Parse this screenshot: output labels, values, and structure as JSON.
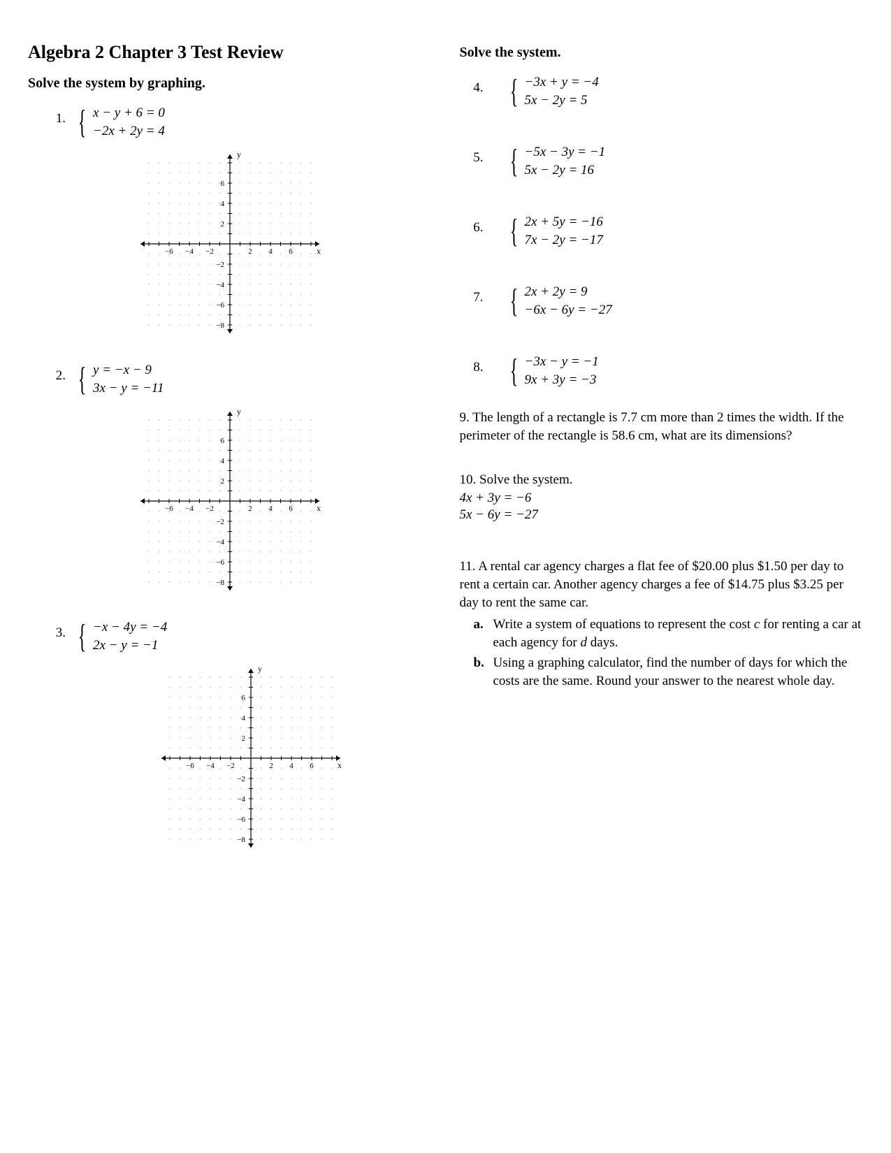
{
  "title": "Algebra 2 Chapter 3 Test Review",
  "left": {
    "heading": "Solve the system by graphing.",
    "problems": [
      {
        "num": "1.",
        "eq1": "x − y + 6 = 0",
        "eq2": "−2x + 2y = 4"
      },
      {
        "num": "2.",
        "eq1": "y = −x − 9",
        "eq2": "3x − y = −11"
      },
      {
        "num": "3.",
        "eq1": "−x − 4y = −4",
        "eq2": "2x − y = −1"
      }
    ]
  },
  "right": {
    "heading": "Solve the system.",
    "problems": [
      {
        "num": "4.",
        "eq1": "−3x + y = −4",
        "eq2": "5x − 2y = 5"
      },
      {
        "num": "5.",
        "eq1": "−5x − 3y = −1",
        "eq2": "5x − 2y = 16"
      },
      {
        "num": "6.",
        "eq1": "2x + 5y = −16",
        "eq2": "7x − 2y = −17"
      },
      {
        "num": "7.",
        "eq1": "2x + 2y = 9",
        "eq2": "−6x − 6y = −27"
      },
      {
        "num": "8.",
        "eq1": "−3x − y = −1",
        "eq2": "9x + 3y = −3"
      }
    ],
    "p9": "9. The length of a rectangle is 7.7 cm more than 2 times the width. If the perimeter of the rectangle is 58.6 cm, what are its dimensions?",
    "p10": {
      "label": "10.      Solve the system.",
      "eq1": "4x + 3y = −6",
      "eq2": "5x − 6y = −27"
    },
    "p11": {
      "intro": "11.  A rental car agency charges a flat fee of $20.00 plus $1.50 per day to rent a certain car. Another agency charges a fee of $14.75 plus $3.25 per day to rent the same car.",
      "a_label": "a.",
      "a_text_pre": "Write a system of equations to represent the cost ",
      "a_c": "c",
      "a_text_mid": " for renting a car at each agency for ",
      "a_d": "d",
      "a_text_post": " days.",
      "b_label": "b.",
      "b_text": "Using a graphing calculator, find the number of days for which the costs are the same. Round your answer to the nearest whole day."
    }
  },
  "grid": {
    "size": 280,
    "min": -8,
    "max": 8,
    "ticks_x": [
      "−6",
      "−4",
      "−2",
      "2",
      "4",
      "6"
    ],
    "ticks_x_vals": [
      -6,
      -4,
      -2,
      2,
      4,
      6
    ],
    "ticks_y_top": [
      "6",
      "4",
      "2"
    ],
    "ticks_y_top_vals": [
      6,
      4,
      2
    ],
    "ticks_y_bot": [
      "−2",
      "−4",
      "−6",
      "−8"
    ],
    "ticks_y_bot_vals": [
      -2,
      -4,
      -6,
      -8
    ],
    "axis_color": "#000000",
    "dot_color": "#b0b0b0",
    "label_font": "11",
    "axis_label_font": "12"
  }
}
